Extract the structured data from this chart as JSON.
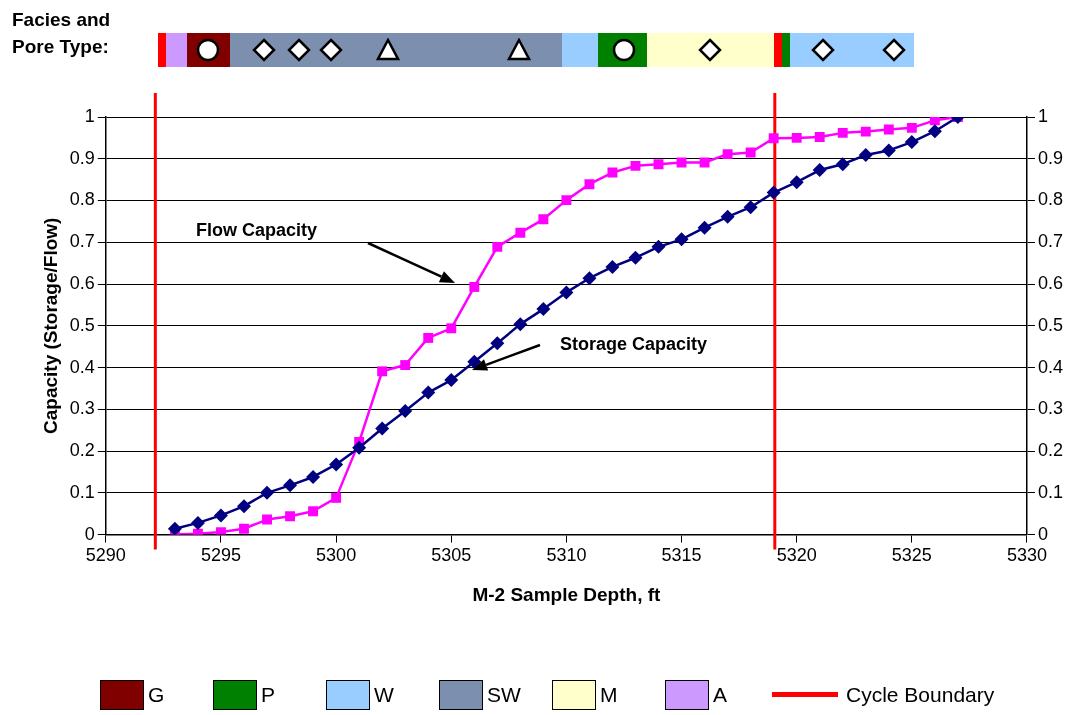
{
  "chart_data": {
    "type": "line",
    "title": "Facies and Pore Type:",
    "xlabel": "M-2 Sample Depth, ft",
    "ylabel": "Capacity (Storage/Flow)",
    "x": [
      5293,
      5294,
      5295,
      5296,
      5297,
      5298,
      5299,
      5300,
      5301,
      5302,
      5303,
      5304,
      5305,
      5306,
      5307,
      5308,
      5309,
      5310,
      5311,
      5312,
      5313,
      5314,
      5315,
      5316,
      5317,
      5318,
      5319,
      5320,
      5321,
      5322,
      5323,
      5324,
      5325,
      5326,
      5327
    ],
    "series": [
      {
        "color": "#000080",
        "marker": "diamond",
        "values": [
          0.014,
          0.028,
          0.046,
          0.068,
          0.1,
          0.118,
          0.138,
          0.168,
          0.208,
          0.254,
          0.296,
          0.34,
          0.37,
          0.414,
          0.458,
          0.504,
          0.54,
          0.58,
          0.614,
          0.641,
          0.663,
          0.689,
          0.707,
          0.735,
          0.761,
          0.784,
          0.819,
          0.844,
          0.873,
          0.887,
          0.909,
          0.92,
          0.94,
          0.966,
          1.0
        ]
      },
      {
        "color": "#ff00ff",
        "marker": "square",
        "values": [
          0.0,
          0.002,
          0.006,
          0.014,
          0.036,
          0.044,
          0.056,
          0.088,
          0.222,
          0.391,
          0.406,
          0.471,
          0.494,
          0.593,
          0.689,
          0.723,
          0.755,
          0.801,
          0.839,
          0.867,
          0.883,
          0.887,
          0.891,
          0.891,
          0.911,
          0.915,
          0.949,
          0.95,
          0.952,
          0.962,
          0.965,
          0.97,
          0.974,
          0.992,
          1.0
        ]
      }
    ],
    "xlim": [
      5290,
      5330
    ],
    "xticks": [
      5290,
      5295,
      5300,
      5305,
      5310,
      5315,
      5320,
      5325,
      5330
    ],
    "ylim": [
      0,
      1
    ],
    "yticks": [
      0,
      0.1,
      0.2,
      0.3,
      0.4,
      0.5,
      0.6,
      0.7,
      0.8,
      0.9,
      1
    ],
    "y2lim": [
      0,
      1
    ],
    "y2ticks": [
      0,
      0.1,
      0.2,
      0.3,
      0.4,
      0.5,
      0.6,
      0.7,
      0.8,
      0.9,
      1
    ],
    "grid": "y",
    "legend": "bottom",
    "line_style": "solid",
    "ref_lines": [
      {
        "axis": "x",
        "value": 5292.15,
        "label": "Cycle Boundary",
        "color": "#ff0000"
      },
      {
        "axis": "x",
        "value": 5319.05,
        "color": "#ff0000"
      }
    ],
    "annotations": [
      "Flow Capacity",
      "Storage Capacity",
      "G",
      "P",
      "W",
      "SW",
      "M",
      "A"
    ]
  }
}
